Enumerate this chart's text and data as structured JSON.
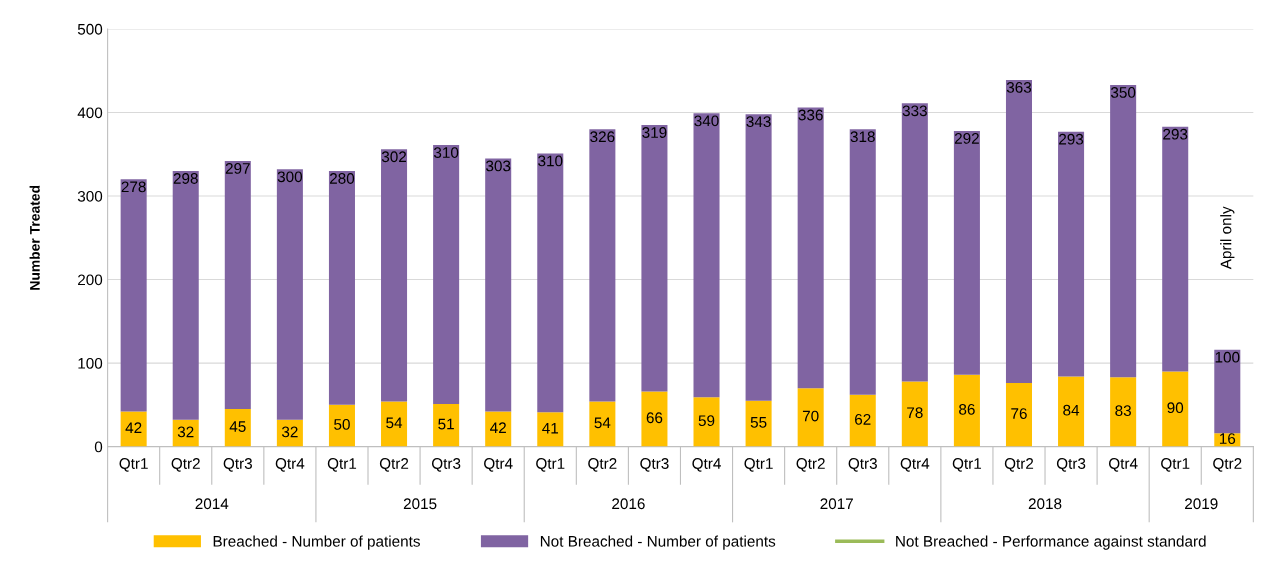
{
  "chart_data": {
    "type": "bar",
    "stacked": true,
    "ylabel": "Number Treated",
    "categories": [
      "Qtr1",
      "Qtr2",
      "Qtr3",
      "Qtr4",
      "Qtr1",
      "Qtr2",
      "Qtr3",
      "Qtr4",
      "Qtr1",
      "Qtr2",
      "Qtr3",
      "Qtr4",
      "Qtr1",
      "Qtr2",
      "Qtr3",
      "Qtr4",
      "Qtr1",
      "Qtr2",
      "Qtr3",
      "Qtr4",
      "Qtr1",
      "Qtr2"
    ],
    "series": [
      {
        "name": "Breached - Number of patients",
        "color": "#ffc000",
        "values": [
          42,
          32,
          45,
          32,
          50,
          54,
          51,
          42,
          41,
          54,
          66,
          59,
          55,
          70,
          62,
          78,
          86,
          76,
          84,
          83,
          90,
          16
        ]
      },
      {
        "name": "Not Breached - Number of patients",
        "color": "#8064a2",
        "values": [
          278,
          298,
          297,
          300,
          280,
          302,
          310,
          303,
          310,
          326,
          319,
          340,
          343,
          336,
          318,
          333,
          292,
          363,
          293,
          350,
          293,
          100
        ]
      },
      {
        "name": "Not Breached - Performance against standard",
        "color": "#9bbb59",
        "type": "line",
        "values": [
          null,
          null,
          null,
          null,
          null,
          null,
          null,
          null,
          null,
          null,
          null,
          null,
          null,
          null,
          null,
          null,
          null,
          null,
          null,
          null,
          null,
          null
        ]
      }
    ],
    "annotations": [
      "2014",
      "2015",
      "2016",
      "2017",
      "2018",
      "2019",
      "April only"
    ],
    "ylim": [
      0,
      500
    ],
    "yticks": [
      0,
      100,
      200,
      300,
      400,
      500
    ],
    "grid": "y",
    "legend": "bottom",
    "data_labels": true
  }
}
